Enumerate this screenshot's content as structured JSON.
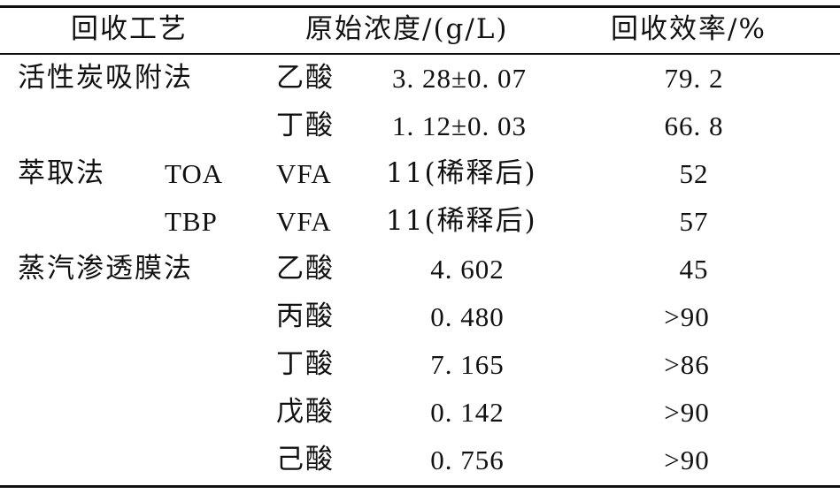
{
  "table": {
    "headers": {
      "process": "回收工艺",
      "concentration": "原始浓度/(g/L)",
      "efficiency": "回收效率/%"
    },
    "rows": [
      {
        "method": "活性炭吸附法",
        "sub": "",
        "acid": "乙酸",
        "concentration": "3. 28±0. 07",
        "efficiency": "79. 2"
      },
      {
        "method": "",
        "sub": "",
        "acid": "丁酸",
        "concentration": "1. 12±0. 03",
        "efficiency": "66. 8"
      },
      {
        "method": "萃取法",
        "sub": "TOA",
        "acid": "VFA",
        "concentration": "11(稀释后)",
        "efficiency": "52"
      },
      {
        "method": "",
        "sub": "TBP",
        "acid": "VFA",
        "concentration": "11(稀释后)",
        "efficiency": "57"
      },
      {
        "method": "蒸汽渗透膜法",
        "sub": "",
        "acid": "乙酸",
        "concentration": "4. 602",
        "efficiency": "45"
      },
      {
        "method": "",
        "sub": "",
        "acid": "丙酸",
        "concentration": "0. 480",
        "efficiency": ">90"
      },
      {
        "method": "",
        "sub": "",
        "acid": "丁酸",
        "concentration": "7. 165",
        "efficiency": ">86"
      },
      {
        "method": "",
        "sub": "",
        "acid": "戊酸",
        "concentration": "0. 142",
        "efficiency": ">90"
      },
      {
        "method": "",
        "sub": "",
        "acid": "己酸",
        "concentration": "0. 756",
        "efficiency": ">90"
      }
    ]
  }
}
